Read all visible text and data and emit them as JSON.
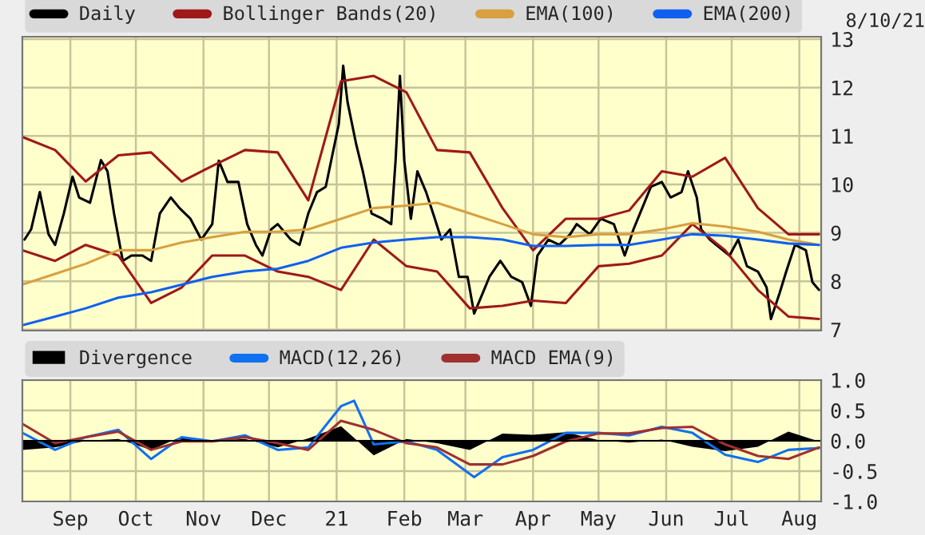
{
  "chart_data": [
    {
      "type": "line",
      "annotations": [
        "8/10/21"
      ],
      "legend": "top",
      "grid": true,
      "tick_labels": "y",
      "xlim": [
        "2020-08-10",
        "2021-08-11"
      ],
      "xticks": [
        {
          "value": "2020-09-01",
          "label": null
        },
        {
          "value": "2020-10-01",
          "label": null
        },
        {
          "value": "2020-11-01",
          "label": null
        },
        {
          "value": "2020-12-01",
          "label": null
        },
        {
          "value": "2021-01-01",
          "label": null
        },
        {
          "value": "2021-02-01",
          "label": null
        },
        {
          "value": "2021-03-01",
          "label": null
        },
        {
          "value": "2021-04-01",
          "label": null
        },
        {
          "value": "2021-05-01",
          "label": null
        },
        {
          "value": "2021-06-01",
          "label": null
        },
        {
          "value": "2021-07-01",
          "label": null
        },
        {
          "value": "2021-08-01",
          "label": null
        }
      ],
      "ylim": [
        6.98,
        13.05
      ],
      "yticks": [
        7,
        8,
        9,
        10,
        11,
        12,
        13
      ],
      "series": [
        {
          "name": "Daily",
          "color": "#000000",
          "x": [
            "2020-08-11",
            "2020-08-14",
            "2020-08-18",
            "2020-08-22",
            "2020-08-25",
            "2020-08-29",
            "2020-09-02",
            "2020-09-05",
            "2020-09-10",
            "2020-09-15",
            "2020-09-18",
            "2020-09-21",
            "2020-09-25",
            "2020-09-29",
            "2020-10-04",
            "2020-10-08",
            "2020-10-12",
            "2020-10-17",
            "2020-10-21",
            "2020-10-26",
            "2020-10-31",
            "2020-11-05",
            "2020-11-08",
            "2020-11-12",
            "2020-11-17",
            "2020-11-21",
            "2020-11-25",
            "2020-11-28",
            "2020-12-02",
            "2020-12-05",
            "2020-12-11",
            "2020-12-15",
            "2020-12-19",
            "2020-12-23",
            "2020-12-27",
            "2020-12-30",
            "2021-01-02",
            "2021-01-04",
            "2021-01-06",
            "2021-01-10",
            "2021-01-13",
            "2021-01-17",
            "2021-01-22",
            "2021-01-26",
            "2021-01-28",
            "2021-01-30",
            "2021-02-01",
            "2021-02-04",
            "2021-02-07",
            "2021-02-11",
            "2021-02-15",
            "2021-02-18",
            "2021-02-22",
            "2021-02-26",
            "2021-03-02",
            "2021-03-05",
            "2021-03-09",
            "2021-03-12",
            "2021-03-17",
            "2021-03-22",
            "2021-03-27",
            "2021-03-31",
            "2021-04-03",
            "2021-04-08",
            "2021-04-13",
            "2021-04-18",
            "2021-04-21",
            "2021-04-27",
            "2021-05-02",
            "2021-05-08",
            "2021-05-13",
            "2021-05-17",
            "2021-05-21",
            "2021-05-25",
            "2021-05-30",
            "2021-06-03",
            "2021-06-08",
            "2021-06-11",
            "2021-06-15",
            "2021-06-17",
            "2021-06-21",
            "2021-06-24",
            "2021-06-30",
            "2021-07-04",
            "2021-07-08",
            "2021-07-13",
            "2021-07-17",
            "2021-07-19",
            "2021-07-23",
            "2021-07-26",
            "2021-07-30",
            "2021-08-04",
            "2021-08-07",
            "2021-08-10"
          ],
          "values": [
            8.86,
            9.07,
            9.84,
            8.97,
            8.75,
            9.4,
            10.16,
            9.73,
            9.62,
            10.5,
            10.27,
            9.4,
            8.42,
            8.53,
            8.53,
            8.42,
            9.4,
            9.73,
            9.51,
            9.29,
            8.86,
            9.18,
            10.49,
            10.05,
            10.05,
            9.18,
            8.75,
            8.53,
            9.07,
            9.18,
            8.86,
            8.75,
            9.4,
            9.84,
            9.95,
            10.6,
            11.25,
            12.45,
            11.7,
            10.82,
            10.27,
            9.4,
            9.29,
            9.18,
            10.49,
            12.24,
            10.49,
            9.29,
            10.27,
            9.84,
            9.29,
            8.86,
            9.07,
            8.09,
            8.09,
            7.33,
            7.76,
            8.09,
            8.42,
            8.09,
            7.98,
            7.49,
            8.53,
            8.86,
            8.75,
            8.97,
            9.18,
            8.97,
            9.29,
            9.18,
            8.53,
            9.07,
            9.51,
            9.95,
            10.05,
            9.73,
            9.84,
            10.27,
            9.73,
            9.07,
            8.86,
            8.75,
            8.53,
            8.86,
            8.31,
            8.2,
            7.87,
            7.22,
            7.76,
            8.2,
            8.75,
            8.64,
            7.98,
            7.82
          ]
        },
        {
          "name": "Bollinger Bands(20)",
          "color": "#a01818",
          "x": [
            "2020-08-10",
            "2020-08-25",
            "2020-09-08",
            "2020-09-23",
            "2020-10-08",
            "2020-10-22",
            "2020-11-05",
            "2020-11-20",
            "2020-12-05",
            "2020-12-19",
            "2021-01-03",
            "2021-01-18",
            "2021-02-02",
            "2021-02-16",
            "2021-03-03",
            "2021-03-18",
            "2021-04-01",
            "2021-04-16",
            "2021-05-01",
            "2021-05-15",
            "2021-05-30",
            "2021-06-13",
            "2021-06-28",
            "2021-07-13",
            "2021-07-27",
            "2021-08-10"
          ],
          "values": [
            10.98,
            10.71,
            10.06,
            10.6,
            10.66,
            10.06,
            10.38,
            10.71,
            10.66,
            9.67,
            12.13,
            12.24,
            11.9,
            10.71,
            10.66,
            9.51,
            8.64,
            9.29,
            9.29,
            9.46,
            10.27,
            10.16,
            10.55,
            9.51,
            8.97,
            8.97
          ]
        },
        {
          "color": "#a01818",
          "x": [
            "2020-08-10",
            "2020-08-25",
            "2020-09-08",
            "2020-09-23",
            "2020-10-08",
            "2020-10-22",
            "2020-11-05",
            "2020-11-20",
            "2020-12-05",
            "2020-12-19",
            "2021-01-03",
            "2021-01-18",
            "2021-02-02",
            "2021-02-16",
            "2021-03-03",
            "2021-03-18",
            "2021-04-01",
            "2021-04-16",
            "2021-05-01",
            "2021-05-15",
            "2021-05-30",
            "2021-06-13",
            "2021-06-28",
            "2021-07-13",
            "2021-07-27",
            "2021-08-10"
          ],
          "values": [
            8.64,
            8.42,
            8.75,
            8.53,
            7.55,
            7.87,
            8.53,
            8.53,
            8.2,
            8.09,
            7.82,
            8.86,
            8.31,
            8.2,
            7.44,
            7.49,
            7.6,
            7.55,
            8.31,
            8.36,
            8.53,
            9.18,
            8.64,
            7.82,
            7.27,
            7.22
          ]
        },
        {
          "name": "EMA(100)",
          "color": "#d8a040",
          "x": [
            "2020-08-10",
            "2020-08-25",
            "2020-09-08",
            "2020-09-23",
            "2020-10-08",
            "2020-10-22",
            "2020-11-05",
            "2020-11-20",
            "2020-12-05",
            "2020-12-19",
            "2021-01-03",
            "2021-01-18",
            "2021-02-02",
            "2021-02-16",
            "2021-03-03",
            "2021-03-18",
            "2021-04-01",
            "2021-04-16",
            "2021-05-01",
            "2021-05-15",
            "2021-05-30",
            "2021-06-13",
            "2021-06-28",
            "2021-07-13",
            "2021-07-27",
            "2021-08-10"
          ],
          "values": [
            7.93,
            8.15,
            8.36,
            8.64,
            8.64,
            8.8,
            8.91,
            9.02,
            9.02,
            9.07,
            9.29,
            9.51,
            9.56,
            9.62,
            9.4,
            9.18,
            8.97,
            8.91,
            8.97,
            8.97,
            9.07,
            9.2,
            9.13,
            9.02,
            8.86,
            8.75
          ]
        },
        {
          "name": "EMA(200)",
          "color": "#1060f0",
          "x": [
            "2020-08-10",
            "2020-08-25",
            "2020-09-08",
            "2020-09-23",
            "2020-10-08",
            "2020-10-22",
            "2020-11-05",
            "2020-11-20",
            "2020-12-05",
            "2020-12-19",
            "2021-01-03",
            "2021-01-18",
            "2021-02-02",
            "2021-02-16",
            "2021-03-03",
            "2021-03-18",
            "2021-04-01",
            "2021-04-16",
            "2021-05-01",
            "2021-05-15",
            "2021-05-30",
            "2021-06-13",
            "2021-06-28",
            "2021-07-13",
            "2021-07-27",
            "2021-08-10"
          ],
          "values": [
            7.09,
            7.27,
            7.44,
            7.66,
            7.77,
            7.93,
            8.09,
            8.2,
            8.26,
            8.42,
            8.69,
            8.8,
            8.86,
            8.91,
            8.91,
            8.86,
            8.73,
            8.73,
            8.75,
            8.75,
            8.86,
            8.97,
            8.94,
            8.86,
            8.78,
            8.75
          ]
        }
      ]
    },
    {
      "type": "line",
      "legend": "top",
      "grid": true,
      "xlim": [
        "2020-08-10",
        "2021-08-11"
      ],
      "xticks": [
        {
          "value": "2020-09-01",
          "label": "Sep"
        },
        {
          "value": "2020-10-01",
          "label": "Oct"
        },
        {
          "value": "2020-11-01",
          "label": "Nov"
        },
        {
          "value": "2020-12-01",
          "label": "Dec"
        },
        {
          "value": "2021-01-01",
          "label": "21"
        },
        {
          "value": "2021-02-01",
          "label": "Feb"
        },
        {
          "value": "2021-03-01",
          "label": "Mar"
        },
        {
          "value": "2021-04-01",
          "label": "Apr"
        },
        {
          "value": "2021-05-01",
          "label": "May"
        },
        {
          "value": "2021-06-01",
          "label": "Jun"
        },
        {
          "value": "2021-07-01",
          "label": "Jul"
        },
        {
          "value": "2021-08-01",
          "label": "Aug"
        }
      ],
      "ylim": [
        -1,
        1
      ],
      "yticks": [
        {
          "value": 1,
          "label": "1.0"
        },
        {
          "value": 0.5,
          "label": "0.5"
        },
        {
          "value": 0,
          "label": "0.0"
        },
        {
          "value": -0.5,
          "label": "-0.5"
        },
        {
          "value": -1,
          "label": "-1.0"
        }
      ],
      "series": [
        {
          "name": "Divergence",
          "type": "area",
          "color": "#000000",
          "x": [
            "2020-08-10",
            "2020-08-25",
            "2020-09-08",
            "2020-09-23",
            "2020-10-08",
            "2020-10-22",
            "2020-11-05",
            "2020-11-20",
            "2020-12-05",
            "2020-12-19",
            "2021-01-03",
            "2021-01-18",
            "2021-02-02",
            "2021-02-16",
            "2021-03-03",
            "2021-03-18",
            "2021-04-01",
            "2021-04-16",
            "2021-05-01",
            "2021-05-15",
            "2021-05-30",
            "2021-06-13",
            "2021-06-28",
            "2021-07-13",
            "2021-07-27",
            "2021-08-10"
          ],
          "values": [
            -0.15,
            -0.11,
            0,
            0.03,
            -0.15,
            0.07,
            0,
            0.03,
            -0.11,
            0.04,
            0.24,
            -0.24,
            0.03,
            -0.04,
            -0.15,
            0.12,
            0.1,
            0.14,
            0.01,
            -0.03,
            0.02,
            -0.1,
            -0.17,
            -0.1,
            0.15,
            -0.01
          ]
        },
        {
          "name": "MACD(12,26)",
          "color": "#1070f0",
          "x": [
            "2020-08-10",
            "2020-08-25",
            "2020-09-08",
            "2020-09-23",
            "2020-10-08",
            "2020-10-22",
            "2020-11-05",
            "2020-11-20",
            "2020-12-05",
            "2020-12-19",
            "2021-01-03",
            "2021-01-09",
            "2021-01-18",
            "2021-02-02",
            "2021-02-16",
            "2021-03-05",
            "2021-03-18",
            "2021-04-01",
            "2021-04-16",
            "2021-05-01",
            "2021-05-15",
            "2021-05-30",
            "2021-06-13",
            "2021-06-28",
            "2021-07-13",
            "2021-07-27",
            "2021-08-10"
          ],
          "values": [
            0.13,
            -0.15,
            0.06,
            0.18,
            -0.3,
            0.06,
            -0.01,
            0.09,
            -0.15,
            -0.11,
            0.57,
            0.66,
            -0.06,
            -0.01,
            -0.15,
            -0.6,
            -0.27,
            -0.15,
            0.13,
            0.13,
            0.09,
            0.23,
            0.13,
            -0.23,
            -0.35,
            -0.15,
            -0.12
          ]
        },
        {
          "name": "MACD EMA(9)",
          "color": "#a03030",
          "x": [
            "2020-08-10",
            "2020-08-25",
            "2020-09-08",
            "2020-09-23",
            "2020-10-08",
            "2020-10-22",
            "2020-11-05",
            "2020-11-20",
            "2020-12-05",
            "2020-12-19",
            "2021-01-03",
            "2021-01-18",
            "2021-02-02",
            "2021-02-16",
            "2021-03-03",
            "2021-03-18",
            "2021-04-01",
            "2021-04-16",
            "2021-05-01",
            "2021-05-15",
            "2021-05-30",
            "2021-06-13",
            "2021-06-28",
            "2021-07-13",
            "2021-07-27",
            "2021-08-10"
          ],
          "values": [
            0.28,
            -0.04,
            0.06,
            0.15,
            -0.15,
            -0.01,
            -0.01,
            0.06,
            -0.04,
            -0.15,
            0.33,
            0.18,
            -0.04,
            -0.11,
            -0.39,
            -0.39,
            -0.25,
            -0.01,
            0.12,
            0.12,
            0.21,
            0.23,
            -0.06,
            -0.25,
            -0.3,
            -0.11
          ]
        }
      ]
    }
  ]
}
